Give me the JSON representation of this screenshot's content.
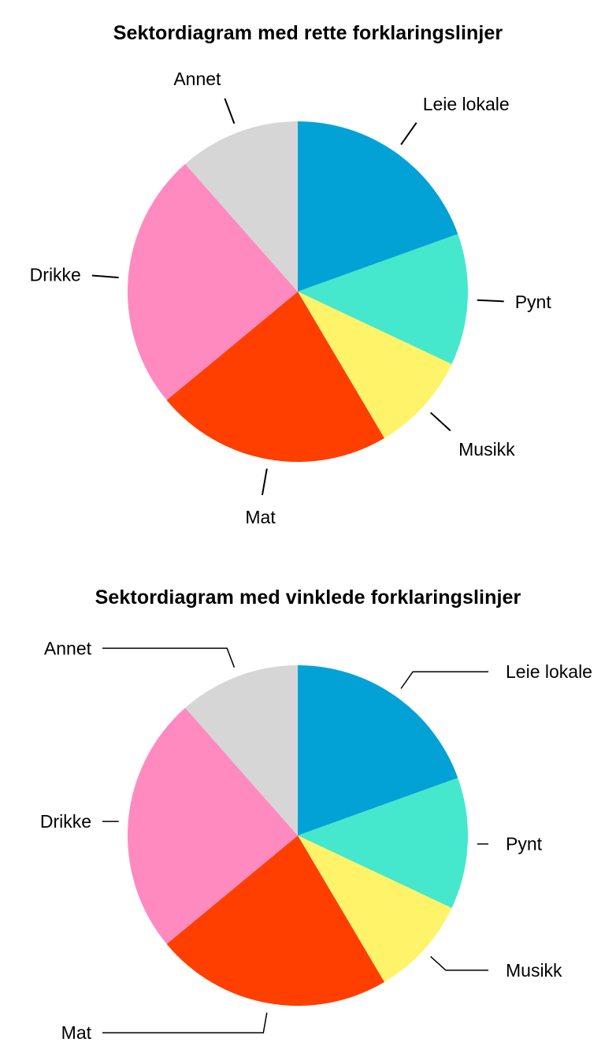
{
  "chart_data": [
    {
      "type": "pie",
      "title": "Sektordiagram med rette forklaringslinjer",
      "label_style": "straight",
      "slices": [
        {
          "label": "Leie lokale",
          "value": 19.5,
          "color": "#03A2D6"
        },
        {
          "label": "Pynt",
          "value": 12.5,
          "color": "#45E8CC"
        },
        {
          "label": "Musikk",
          "value": 9.5,
          "color": "#FFF36A"
        },
        {
          "label": "Mat",
          "value": 22.5,
          "color": "#FF3F00"
        },
        {
          "label": "Drikke",
          "value": 24.5,
          "color": "#FF8AC0"
        },
        {
          "label": "Annet",
          "value": 11.5,
          "color": "#D6D6D6"
        }
      ]
    },
    {
      "type": "pie",
      "title": "Sektordiagram med vinklede forklaringslinjer",
      "label_style": "angled",
      "slices": [
        {
          "label": "Leie lokale",
          "value": 19.5,
          "color": "#03A2D6"
        },
        {
          "label": "Pynt",
          "value": 12.5,
          "color": "#45E8CC"
        },
        {
          "label": "Musikk",
          "value": 9.5,
          "color": "#FFF36A"
        },
        {
          "label": "Mat",
          "value": 22.5,
          "color": "#FF3F00"
        },
        {
          "label": "Drikke",
          "value": 24.5,
          "color": "#FF8AC0"
        },
        {
          "label": "Annet",
          "value": 11.5,
          "color": "#D6D6D6"
        }
      ]
    }
  ]
}
